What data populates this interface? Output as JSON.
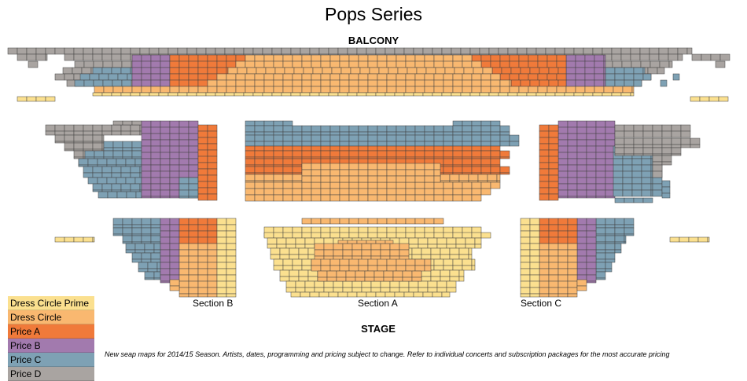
{
  "title": "Pops Series",
  "labels": {
    "balcony": "BALCONY",
    "stage": "STAGE",
    "section_a": "Section A",
    "section_b": "Section B",
    "section_c": "Section C"
  },
  "legend": [
    {
      "label": "Dress Circle Prime",
      "color": "#fbe08f"
    },
    {
      "label": "Dress Circle",
      "color": "#f9b870"
    },
    {
      "label": "Price A",
      "color": "#f07a3a"
    },
    {
      "label": "Price B",
      "color": "#a27aae"
    },
    {
      "label": "Price C",
      "color": "#7ea1b4"
    },
    {
      "label": "Price D",
      "color": "#a9a4a1"
    }
  ],
  "notice": "New seap maps for 2014/15 Season. Artists, dates, programming and pricing subject to change. Refer to individual concerts and subscription packages for the most accurate pricing"
}
